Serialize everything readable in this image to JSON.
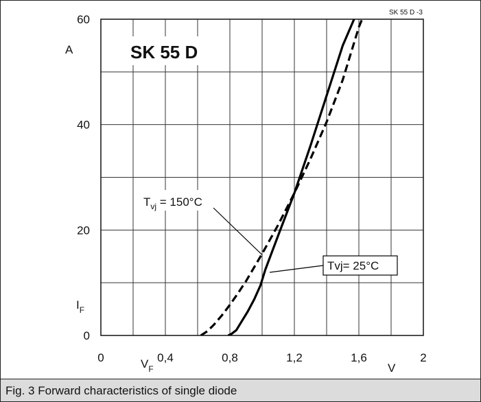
{
  "chart_data": {
    "type": "line",
    "title": "SK 55 D",
    "figure_id": "SK 55 D   -3",
    "xlabel": "V",
    "xlabel_main": "F",
    "ylabel": "I",
    "ylabel_sub": "F",
    "yunit": "A",
    "xunit": "V",
    "xlim": [
      0,
      2
    ],
    "ylim": [
      0,
      60
    ],
    "grid": true,
    "x_ticks": [
      {
        "v": 0,
        "label": "0"
      },
      {
        "v": 0.4,
        "label": "0,4"
      },
      {
        "v": 0.8,
        "label": "0,8"
      },
      {
        "v": 1.2,
        "label": "1,2"
      },
      {
        "v": 1.6,
        "label": "1,6"
      },
      {
        "v": 2.0,
        "label": "2"
      }
    ],
    "y_ticks": [
      {
        "v": 0,
        "label": "0"
      },
      {
        "v": 20,
        "label": "20"
      },
      {
        "v": 40,
        "label": "40"
      },
      {
        "v": 60,
        "label": "60"
      }
    ],
    "x_grid": [
      0.2,
      0.4,
      0.6,
      0.8,
      1.0,
      1.2,
      1.4,
      1.6,
      1.8
    ],
    "y_grid": [
      10,
      20,
      30,
      40,
      50
    ],
    "series": [
      {
        "name": "Tvj= 25°C",
        "style": "solid",
        "color": "#000000",
        "x": [
          0.79,
          0.81,
          0.84,
          0.87,
          0.91,
          0.95,
          0.99,
          1.02,
          1.1,
          1.2,
          1.3,
          1.4,
          1.5,
          1.57
        ],
        "y": [
          0,
          0.3,
          1,
          2.5,
          4.5,
          6.8,
          9.5,
          12.5,
          19,
          27,
          36,
          45.5,
          55,
          60
        ]
      },
      {
        "name": "T_vj = 150°C",
        "style": "dashed",
        "color": "#000000",
        "x": [
          0.62,
          0.66,
          0.7,
          0.75,
          0.8,
          0.85,
          0.9,
          1.0,
          1.1,
          1.2,
          1.3,
          1.4,
          1.5,
          1.6,
          1.62
        ],
        "y": [
          0,
          0.8,
          2,
          3.8,
          5.8,
          8,
          10.3,
          15.5,
          21,
          27,
          33.5,
          40.5,
          48.5,
          58.5,
          60
        ]
      }
    ],
    "annotations": [
      {
        "series": 1,
        "main": "T",
        "sub": "vj",
        "rest": " = 150°C"
      },
      {
        "series": 0,
        "main": "Tvj= 25°C",
        "sub": "",
        "rest": ""
      }
    ]
  },
  "caption": "Fig. 3 Forward characteristics of single diode"
}
